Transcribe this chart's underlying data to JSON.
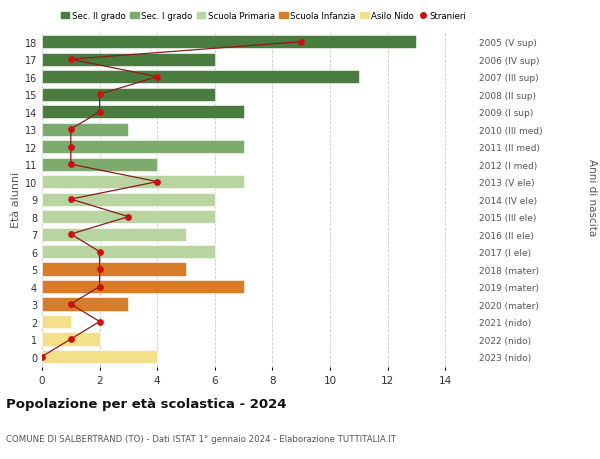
{
  "ages": [
    18,
    17,
    16,
    15,
    14,
    13,
    12,
    11,
    10,
    9,
    8,
    7,
    6,
    5,
    4,
    3,
    2,
    1,
    0
  ],
  "years_labels": [
    "2005 (V sup)",
    "2006 (IV sup)",
    "2007 (III sup)",
    "2008 (II sup)",
    "2009 (I sup)",
    "2010 (III med)",
    "2011 (II med)",
    "2012 (I med)",
    "2013 (V ele)",
    "2014 (IV ele)",
    "2015 (III ele)",
    "2016 (II ele)",
    "2017 (I ele)",
    "2018 (mater)",
    "2019 (mater)",
    "2020 (mater)",
    "2021 (nido)",
    "2022 (nido)",
    "2023 (nido)"
  ],
  "bar_values": [
    13,
    6,
    11,
    6,
    7,
    3,
    7,
    4,
    7,
    6,
    6,
    5,
    6,
    5,
    7,
    3,
    1,
    2,
    4
  ],
  "bar_colors": [
    "#4a7c3f",
    "#4a7c3f",
    "#4a7c3f",
    "#4a7c3f",
    "#4a7c3f",
    "#7dab6e",
    "#7dab6e",
    "#7dab6e",
    "#b8d4a0",
    "#b8d4a0",
    "#b8d4a0",
    "#b8d4a0",
    "#b8d4a0",
    "#d97c2a",
    "#d97c2a",
    "#d97c2a",
    "#f5e08a",
    "#f5e08a",
    "#f5e08a"
  ],
  "stranieri_values": [
    9,
    1,
    4,
    2,
    2,
    1,
    1,
    1,
    4,
    1,
    3,
    1,
    2,
    2,
    2,
    1,
    2,
    1,
    0
  ],
  "legend_labels": [
    "Sec. II grado",
    "Sec. I grado",
    "Scuola Primaria",
    "Scuola Infanzia",
    "Asilo Nido",
    "Stranieri"
  ],
  "legend_colors": [
    "#4a7c3f",
    "#7dab6e",
    "#b8d4a0",
    "#d97c2a",
    "#f5e08a",
    "#cc1111"
  ],
  "ylabel": "Età alunni",
  "ylabel2": "Anni di nascita",
  "title": "Popolazione per età scolastica - 2024",
  "subtitle": "COMUNE DI SALBERTRAND (TO) - Dati ISTAT 1° gennaio 2024 - Elaborazione TUTTITALIA.IT",
  "xlim": [
    0,
    15
  ],
  "background_color": "#ffffff",
  "grid_color": "#cccccc"
}
